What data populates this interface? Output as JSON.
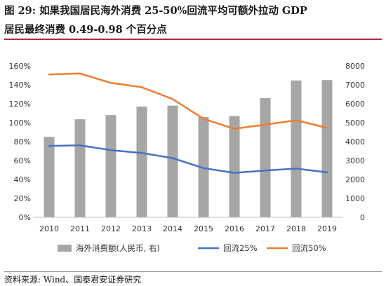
{
  "header": {
    "line1": "图 29:  如果我国居民海外消费 25-50%回流平均可额外拉动 GDP",
    "line2": "居民最终消费 0.49-0.98 个百分点"
  },
  "footer": {
    "source": "资料来源:  Wind、国泰君安证券研究"
  },
  "colors": {
    "bar": "#a6a6a6",
    "line_25": "#4472c4",
    "line_50": "#ed7d31",
    "accent_rule": "#b5283b"
  },
  "chart_data": {
    "type": "bar+line",
    "categories": [
      "2010",
      "2011",
      "2012",
      "2013",
      "2014",
      "2015",
      "2016",
      "2017",
      "2018",
      "2019"
    ],
    "left_axis": {
      "ylim": [
        0,
        160
      ],
      "ticks": [
        "0%",
        "20%",
        "40%",
        "60%",
        "80%",
        "100%",
        "120%",
        "140%",
        "160%"
      ]
    },
    "right_axis": {
      "ylim": [
        0,
        8000
      ],
      "ticks": [
        "0",
        "1000",
        "2000",
        "3000",
        "4000",
        "5000",
        "6000",
        "7000",
        "8000"
      ]
    },
    "legend_position": "bottom",
    "series": [
      {
        "name": "海外消费额(人民币, 右)",
        "type": "bar",
        "axis": "right",
        "values": [
          4250,
          5180,
          5400,
          5850,
          5900,
          5300,
          5350,
          6300,
          7230,
          7250
        ]
      },
      {
        "name": "回流25%",
        "type": "line",
        "axis": "left",
        "values": [
          75.5,
          76.0,
          71.0,
          68.0,
          62.5,
          52.0,
          47.0,
          49.5,
          51.5,
          47.5
        ]
      },
      {
        "name": "回流50%",
        "type": "line",
        "axis": "left",
        "values": [
          151.0,
          152.0,
          142.0,
          137.5,
          125.0,
          104.0,
          93.5,
          98.0,
          102.5,
          94.5
        ]
      }
    ]
  }
}
